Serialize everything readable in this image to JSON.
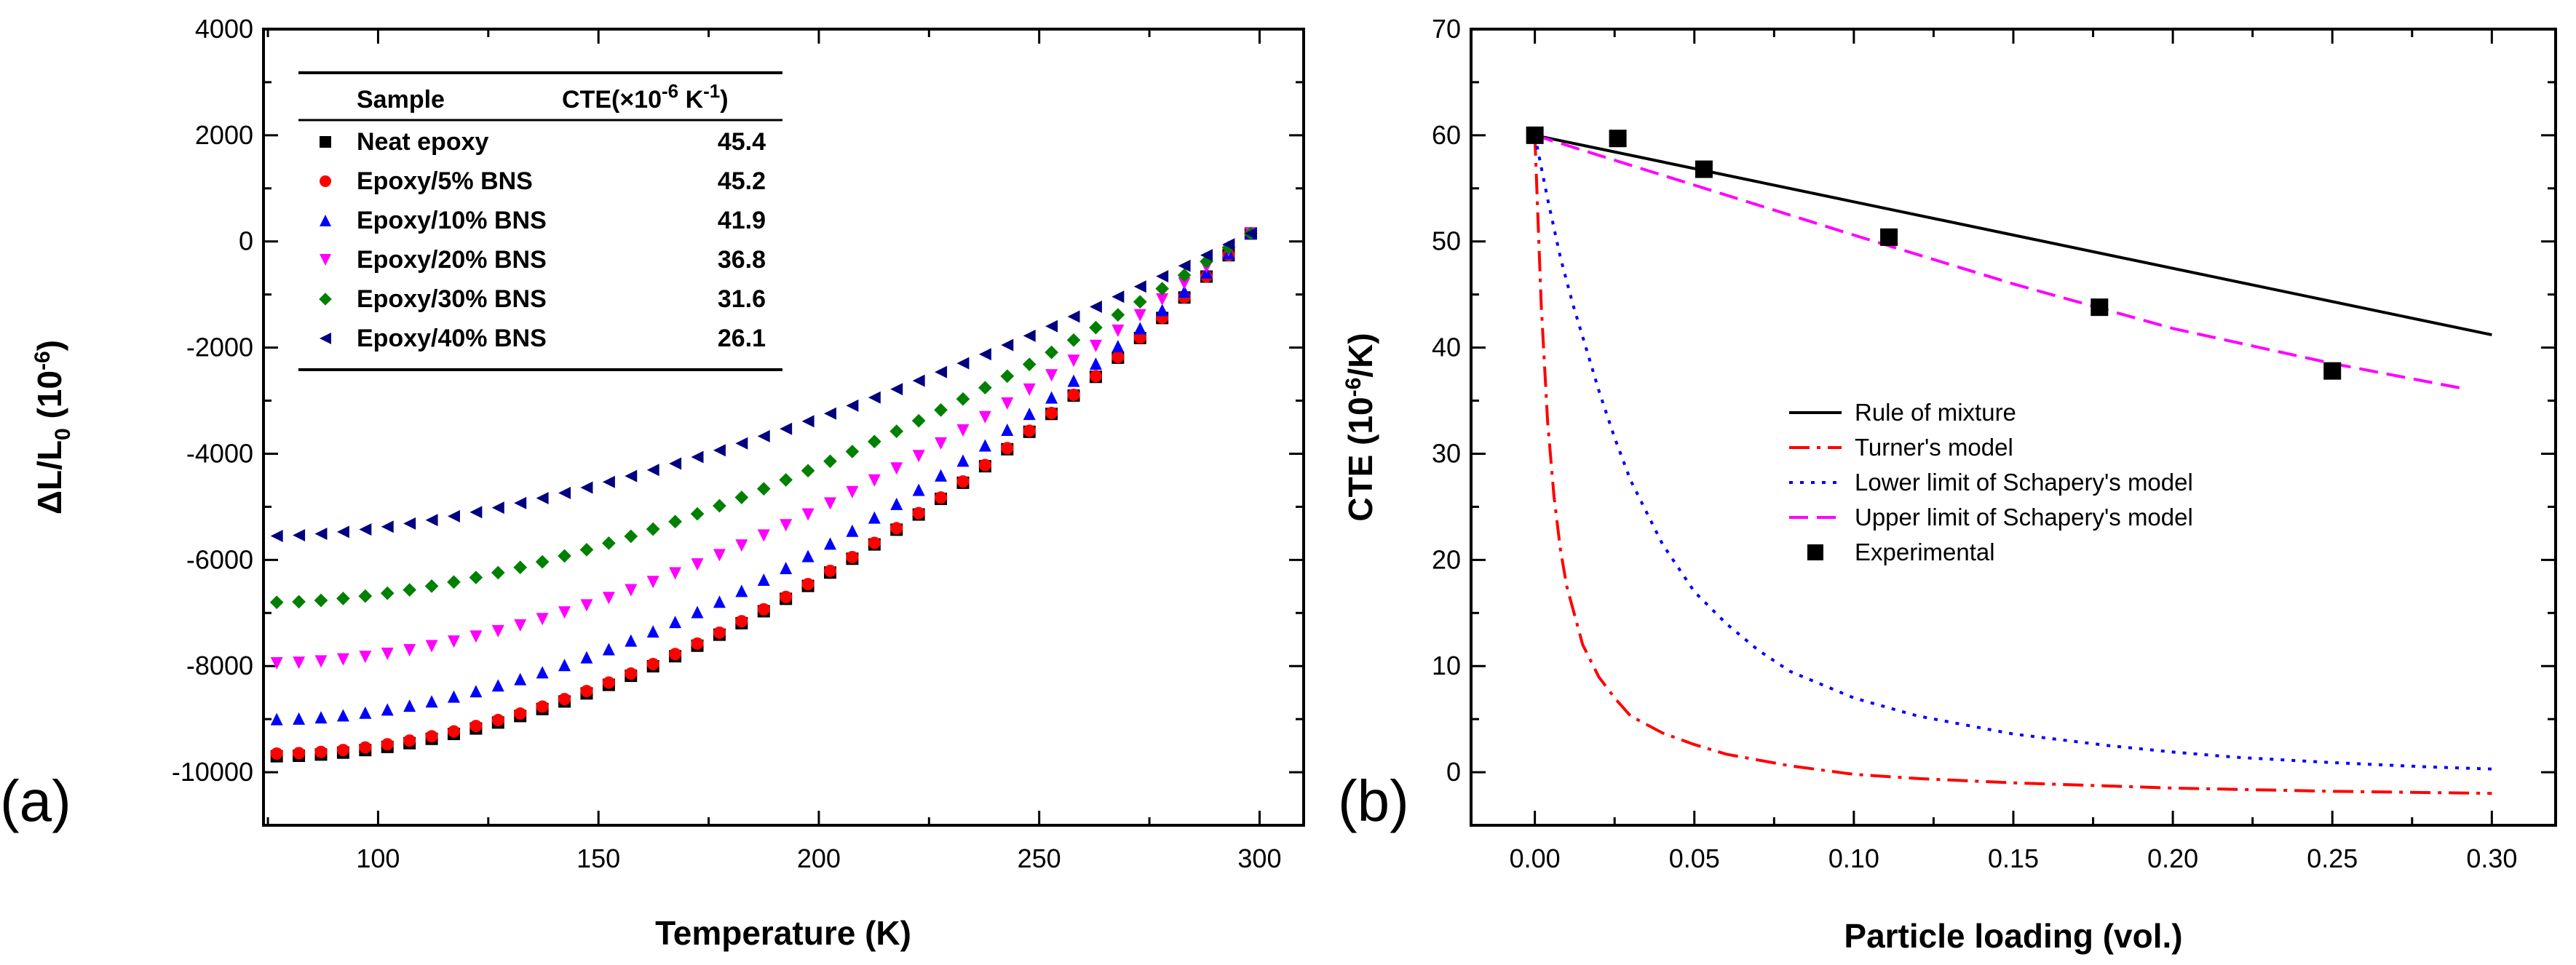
{
  "chart_data": [
    {
      "id": "a",
      "type": "scatter",
      "panel_label": "(a)",
      "xlabel": "Temperature (K)",
      "ylabel_main": "ΔL/L",
      "ylabel_sub": "0",
      "ylabel_unit": " (10",
      "ylabel_exp": "-6",
      "ylabel_close": ")",
      "xlim": [
        74,
        310
      ],
      "ylim": [
        -11000,
        4000
      ],
      "xticks": [
        100,
        150,
        200,
        250,
        300
      ],
      "yticks": [
        -10000,
        -8000,
        -6000,
        -4000,
        -2000,
        0,
        2000,
        4000
      ],
      "x_start": 77,
      "x_end": 298,
      "n_points": 45,
      "end_value": 150,
      "series": [
        {
          "name": "Neat epoxy",
          "cte": "45.4",
          "marker": "square",
          "color": "#000000",
          "start_value": -9700,
          "curvature": 1.85
        },
        {
          "name": "Epoxy/5% BNS",
          "cte": "45.2",
          "marker": "circle",
          "color": "#ff0000",
          "start_value": -9650,
          "curvature": 1.85
        },
        {
          "name": "Epoxy/10% BNS",
          "cte": "41.9",
          "marker": "triangle-up",
          "color": "#0000ff",
          "start_value": -9000,
          "curvature": 1.8
        },
        {
          "name": "Epoxy/20% BNS",
          "cte": "36.8",
          "marker": "triangle-down",
          "color": "#ff00ff",
          "start_value": -7950,
          "curvature": 1.75
        },
        {
          "name": "Epoxy/30% BNS",
          "cte": "31.6",
          "marker": "diamond",
          "color": "#008000",
          "start_value": -6800,
          "curvature": 1.7
        },
        {
          "name": "Epoxy/40% BNS",
          "cte": "26.1",
          "marker": "triangle-left",
          "color": "#000080",
          "start_value": -5550,
          "curvature": 1.6
        }
      ],
      "table_header": {
        "sample": "Sample",
        "cte_prefix": "CTE(×10",
        "cte_exp": "-6",
        "cte_unit": " K",
        "cte_unit_exp": "-1",
        "cte_close": ")"
      }
    },
    {
      "id": "b",
      "type": "line",
      "panel_label": "(b)",
      "xlabel": "Particle loading (vol.)",
      "ylabel_main": "CTE (10",
      "ylabel_exp": "-6",
      "ylabel_close": "/K)",
      "xlim": [
        -0.02,
        0.32
      ],
      "ylim": [
        -5,
        70
      ],
      "xticks": [
        "0.00",
        "0.05",
        "0.10",
        "0.15",
        "0.20",
        "0.25",
        "0.30"
      ],
      "yticks": [
        0,
        10,
        20,
        30,
        40,
        50,
        60,
        70
      ],
      "series": [
        {
          "name": "Rule of mixture",
          "style": "solid",
          "color": "#000000",
          "x": [
            0,
            0.3
          ],
          "y": [
            60,
            41.2
          ]
        },
        {
          "name": "Turner's model",
          "style": "dashdot",
          "color": "#ff0000",
          "x": [
            0,
            0.002,
            0.004,
            0.006,
            0.008,
            0.01,
            0.015,
            0.02,
            0.025,
            0.03,
            0.04,
            0.05,
            0.06,
            0.08,
            0.1,
            0.12,
            0.15,
            0.2,
            0.25,
            0.3
          ],
          "y": [
            60,
            44,
            33,
            26,
            21,
            17.5,
            12,
            9,
            7,
            5.3,
            3.7,
            2.6,
            1.7,
            0.6,
            -0.2,
            -0.6,
            -1,
            -1.5,
            -1.8,
            -2
          ]
        },
        {
          "name": "Lower limit of Schapery's model",
          "style": "dotted",
          "color": "#0000ff",
          "x": [
            0,
            0.004,
            0.008,
            0.012,
            0.016,
            0.02,
            0.025,
            0.03,
            0.04,
            0.05,
            0.06,
            0.07,
            0.08,
            0.1,
            0.12,
            0.15,
            0.18,
            0.2,
            0.22,
            0.25,
            0.28,
            0.3
          ],
          "y": [
            60,
            54,
            48.5,
            44,
            40,
            36,
            31.5,
            27.5,
            21.5,
            17,
            14,
            11.5,
            9.5,
            7,
            5.3,
            3.6,
            2.5,
            1.9,
            1.4,
            0.9,
            0.5,
            0.3
          ]
        },
        {
          "name": "Upper limit of Schapery's model",
          "style": "dashed",
          "color": "#ff00ff",
          "x": [
            0,
            0.05,
            0.1,
            0.15,
            0.2,
            0.25,
            0.29
          ],
          "y": [
            60,
            55.3,
            50.6,
            46,
            41.8,
            38.5,
            36.2
          ]
        },
        {
          "name": "Experimental",
          "style": "marker",
          "color": "#000000",
          "x": [
            0,
            0.026,
            0.053,
            0.111,
            0.177,
            0.25
          ],
          "y": [
            60,
            59.7,
            56.8,
            50.4,
            43.8,
            37.8
          ]
        }
      ]
    }
  ]
}
